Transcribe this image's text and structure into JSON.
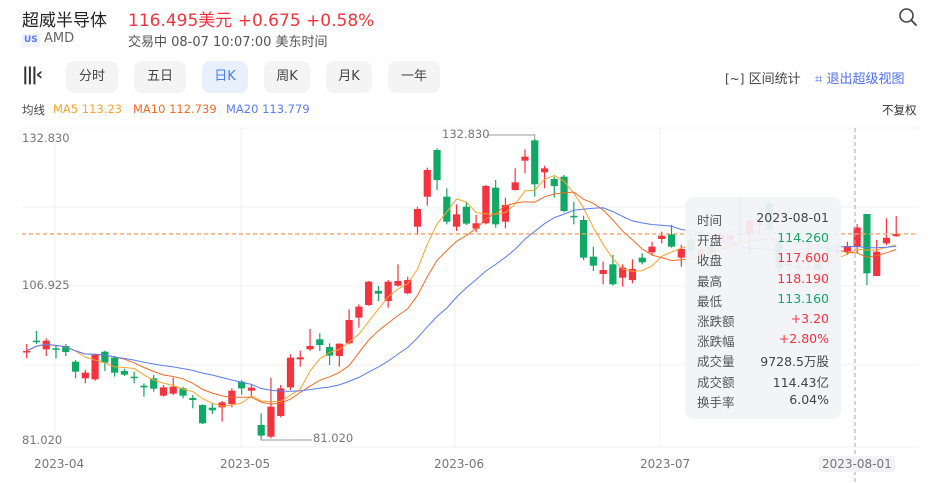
{
  "header": {
    "title": "超威半导体",
    "price": "116.495美元",
    "change": "+0.675",
    "change_pct": "+0.58%",
    "market_badge": "US",
    "ticker": "AMD",
    "status": "交易中 08-07 10:07:00 美东时间"
  },
  "toolbar": {
    "tabs": [
      {
        "label": "分时",
        "active": false
      },
      {
        "label": "五日",
        "active": false
      },
      {
        "label": "日K",
        "active": true
      },
      {
        "label": "周K",
        "active": false
      },
      {
        "label": "月K",
        "active": false
      },
      {
        "label": "一年",
        "active": false
      }
    ],
    "range_stats": "区间统计",
    "exit_super_view": "退出超级视图"
  },
  "ma_legend": {
    "label": "均线",
    "ma5": "MA5 113.23",
    "ma10": "MA10 112.739",
    "ma20": "MA20 113.779",
    "adjust": "不复权"
  },
  "colors": {
    "up": "#f5333f",
    "down": "#0fa864",
    "ma5": "#f9a42c",
    "ma10": "#f06b24",
    "ma20": "#5a7cf0",
    "accent": "#4d7bf3"
  },
  "tooltip": {
    "rows": [
      {
        "k": "时间",
        "v": "2023-08-01"
      },
      {
        "k": "开盘",
        "v": "114.260"
      },
      {
        "k": "收盘",
        "v": "117.600"
      },
      {
        "k": "最高",
        "v": "118.190"
      },
      {
        "k": "最低",
        "v": "113.160"
      },
      {
        "k": "涨跌额",
        "v": "+3.20"
      },
      {
        "k": "涨跌幅",
        "v": "+2.80%"
      },
      {
        "k": "成交量",
        "v": "9728.5万股"
      },
      {
        "k": "成交额",
        "v": "114.43亿"
      },
      {
        "k": "换手率",
        "v": "6.04%"
      }
    ]
  },
  "chart_data": {
    "type": "candlestick",
    "y_ticks": [
      "132.830",
      "106.925",
      "81.020"
    ],
    "ylim": [
      81.02,
      132.83
    ],
    "x_ticks": [
      "2023-04",
      "2023-05",
      "2023-06",
      "2023-07"
    ],
    "crosshair_label": "2023-08-01",
    "max_label": "132.830",
    "min_label": "81.020",
    "last_price": 116.495,
    "ma_periods": [
      5,
      10,
      20
    ],
    "fields": [
      "date",
      "open",
      "high",
      "low",
      "close"
    ],
    "candles": [
      [
        "2023-03-29",
        96.1,
        97.54,
        95.08,
        96.34
      ],
      [
        "2023-03-30",
        98.12,
        99.78,
        97.54,
        98.0
      ],
      [
        "2023-03-31",
        96.63,
        98.52,
        95.48,
        98.12
      ],
      [
        "2023-04-03",
        96.8,
        97.2,
        95.08,
        96.68
      ],
      [
        "2023-04-04",
        97.2,
        97.54,
        95.48,
        96.17
      ],
      [
        "2023-04-05",
        94.5,
        94.79,
        91.63,
        92.78
      ],
      [
        "2023-04-06",
        91.63,
        93.07,
        90.77,
        92.61
      ],
      [
        "2023-04-10",
        91.46,
        95.82,
        91.23,
        95.65
      ],
      [
        "2023-04-11",
        96.22,
        96.4,
        92.9,
        94.33
      ],
      [
        "2023-04-12",
        95.19,
        95.48,
        91.92,
        92.61
      ],
      [
        "2023-04-13",
        92.9,
        93.3,
        92.04,
        92.27
      ],
      [
        "2023-04-14",
        91.92,
        92.78,
        90.77,
        91.81
      ],
      [
        "2023-04-17",
        90.37,
        90.77,
        88.48,
        90.08
      ],
      [
        "2023-04-18",
        91.63,
        92.21,
        89.34,
        89.86
      ],
      [
        "2023-04-19",
        88.65,
        90.49,
        88.48,
        90.08
      ],
      [
        "2023-04-20",
        89.0,
        91.75,
        88.77,
        90.2
      ],
      [
        "2023-04-21",
        89.91,
        90.2,
        88.19,
        88.65
      ],
      [
        "2023-04-24",
        88.25,
        88.77,
        86.47,
        87.9
      ],
      [
        "2023-04-25",
        87.04,
        87.16,
        83.77,
        83.89
      ],
      [
        "2023-04-26",
        86.58,
        87.33,
        85.5,
        86.13
      ],
      [
        "2023-04-27",
        86.64,
        87.73,
        84.18,
        87.5
      ],
      [
        "2023-04-28",
        87.22,
        89.91,
        86.64,
        89.51
      ],
      [
        "2023-05-01",
        91.06,
        91.35,
        88.82,
        89.91
      ],
      [
        "2023-05-02",
        89.51,
        90.49,
        88.48,
        90.03
      ],
      [
        "2023-05-03",
        83.6,
        85.61,
        81.02,
        81.77
      ],
      [
        "2023-05-04",
        81.59,
        91.75,
        81.31,
        86.76
      ],
      [
        "2023-05-05",
        85.15,
        90.49,
        84.92,
        89.91
      ],
      [
        "2023-05-08",
        90.08,
        95.77,
        89.63,
        95.19
      ],
      [
        "2023-05-09",
        94.9,
        96.4,
        93.64,
        95.25
      ],
      [
        "2023-05-10",
        96.63,
        100.13,
        96.4,
        97.2
      ],
      [
        "2023-05-11",
        98.35,
        99.38,
        96.34,
        97.37
      ],
      [
        "2023-05-12",
        97.03,
        97.66,
        93.93,
        95.54
      ],
      [
        "2023-05-15",
        95.48,
        97.66,
        93.65,
        97.6
      ],
      [
        "2023-05-16",
        97.66,
        103.51,
        97.49,
        101.68
      ],
      [
        "2023-05-17",
        102.08,
        104.37,
        100.36,
        103.97
      ],
      [
        "2023-05-18",
        104.26,
        108.39,
        104.14,
        108.27
      ],
      [
        "2023-05-19",
        106.67,
        107.53,
        104.95,
        106.21
      ],
      [
        "2023-05-22",
        104.95,
        108.56,
        103.8,
        108.27
      ],
      [
        "2023-05-23",
        107.59,
        111.26,
        107.41,
        108.39
      ],
      [
        "2023-05-24",
        106.27,
        109.14,
        106.1,
        108.56
      ],
      [
        "2023-05-25",
        117.74,
        121.18,
        116.31,
        120.78
      ],
      [
        "2023-05-26",
        122.9,
        127.9,
        121.36,
        127.5
      ],
      [
        "2023-05-30",
        130.94,
        131.22,
        124.05,
        125.77
      ],
      [
        "2023-05-31",
        122.9,
        124.34,
        118.14,
        118.6
      ],
      [
        "2023-06-01",
        117.74,
        121.59,
        117.0,
        119.86
      ],
      [
        "2023-06-02",
        121.18,
        122.04,
        118.03,
        118.26
      ],
      [
        "2023-06-05",
        117.4,
        119.75,
        116.77,
        118.32
      ],
      [
        "2023-06-06",
        118.32,
        124.91,
        118.14,
        124.74
      ],
      [
        "2023-06-07",
        124.45,
        125.77,
        117.57,
        118.14
      ],
      [
        "2023-06-08",
        118.6,
        122.73,
        117.45,
        121.47
      ],
      [
        "2023-06-09",
        124.05,
        127.78,
        123.94,
        125.37
      ],
      [
        "2023-06-12",
        129.1,
        131.05,
        126.92,
        129.79
      ],
      [
        "2023-06-13",
        132.6,
        132.83,
        122.9,
        125.03
      ],
      [
        "2023-06-14",
        127.09,
        128.24,
        124.34,
        127.78
      ],
      [
        "2023-06-15",
        125.95,
        126.35,
        122.73,
        124.74
      ],
      [
        "2023-06-16",
        126.35,
        126.63,
        120.21,
        120.44
      ],
      [
        "2023-06-20",
        119.6,
        122.04,
        118.14,
        119.4
      ],
      [
        "2023-06-21",
        118.89,
        119.63,
        112.0,
        112.41
      ],
      [
        "2023-06-22",
        112.58,
        114.3,
        110.11,
        111.03
      ],
      [
        "2023-06-23",
        109.6,
        111.72,
        107.82,
        110.28
      ],
      [
        "2023-06-26",
        111.26,
        112.87,
        107.59,
        107.82
      ],
      [
        "2023-06-27",
        108.96,
        111.26,
        107.41,
        110.68
      ],
      [
        "2023-06-28",
        108.56,
        112.12,
        107.99,
        110.46
      ],
      [
        "2023-06-29",
        112.41,
        113.15,
        111.26,
        111.6
      ],
      [
        "2023-06-30",
        113.32,
        115.16,
        112.87,
        114.3
      ],
      [
        "2023-07-03",
        115.62,
        116.88,
        114.87,
        116.19
      ],
      [
        "2023-07-05",
        116.42,
        118.03,
        114.13,
        114.3
      ],
      [
        "2023-07-06",
        112.41,
        114.58,
        110.86,
        113.9
      ],
      [
        "2023-07-07",
        115.45,
        116.3,
        112.9,
        113.55
      ],
      [
        "2023-07-10",
        112.6,
        114.6,
        112.0,
        113.9
      ],
      [
        "2023-07-11",
        114.5,
        115.0,
        112.5,
        113.2
      ],
      [
        "2023-07-12",
        115.2,
        116.8,
        114.6,
        116.3
      ],
      [
        "2023-07-13",
        115.5,
        117.2,
        114.8,
        116.3
      ],
      [
        "2023-07-14",
        116.6,
        122.6,
        115.4,
        116.3
      ],
      [
        "2023-07-17",
        116.3,
        119.18,
        113.15,
        118.77
      ],
      [
        "2023-07-18",
        118.0,
        119.2,
        116.3,
        118.3
      ],
      [
        "2023-07-19",
        121.76,
        122.04,
        116.02,
        117.17
      ],
      [
        "2023-07-20",
        115.16,
        115.44,
        110.0,
        110.57
      ],
      [
        "2023-07-21",
        111.3,
        112.29,
        109.7,
        110.97
      ],
      [
        "2023-07-24",
        111.0,
        111.5,
        109.4,
        110.8
      ],
      [
        "2023-07-25",
        112.0,
        114.87,
        110.57,
        113.44
      ],
      [
        "2023-07-26",
        111.7,
        115.44,
        110.0,
        110.4
      ],
      [
        "2023-07-27",
        113.7,
        114.87,
        111.14,
        113.44
      ],
      [
        "2023-07-28",
        113.7,
        114.6,
        112.5,
        113.4
      ],
      [
        "2023-07-31",
        113.44,
        115.16,
        112.86,
        114.4
      ],
      [
        "2023-08-01",
        114.26,
        118.19,
        113.16,
        117.6
      ],
      [
        "2023-08-02",
        119.92,
        119.92,
        107.7,
        109.71
      ],
      [
        "2023-08-03",
        109.25,
        115.44,
        109.25,
        113.44
      ],
      [
        "2023-08-04",
        114.87,
        119.18,
        114.58,
        115.82
      ],
      [
        "2023-08-07",
        116.1,
        119.58,
        116.0,
        116.495
      ]
    ]
  }
}
